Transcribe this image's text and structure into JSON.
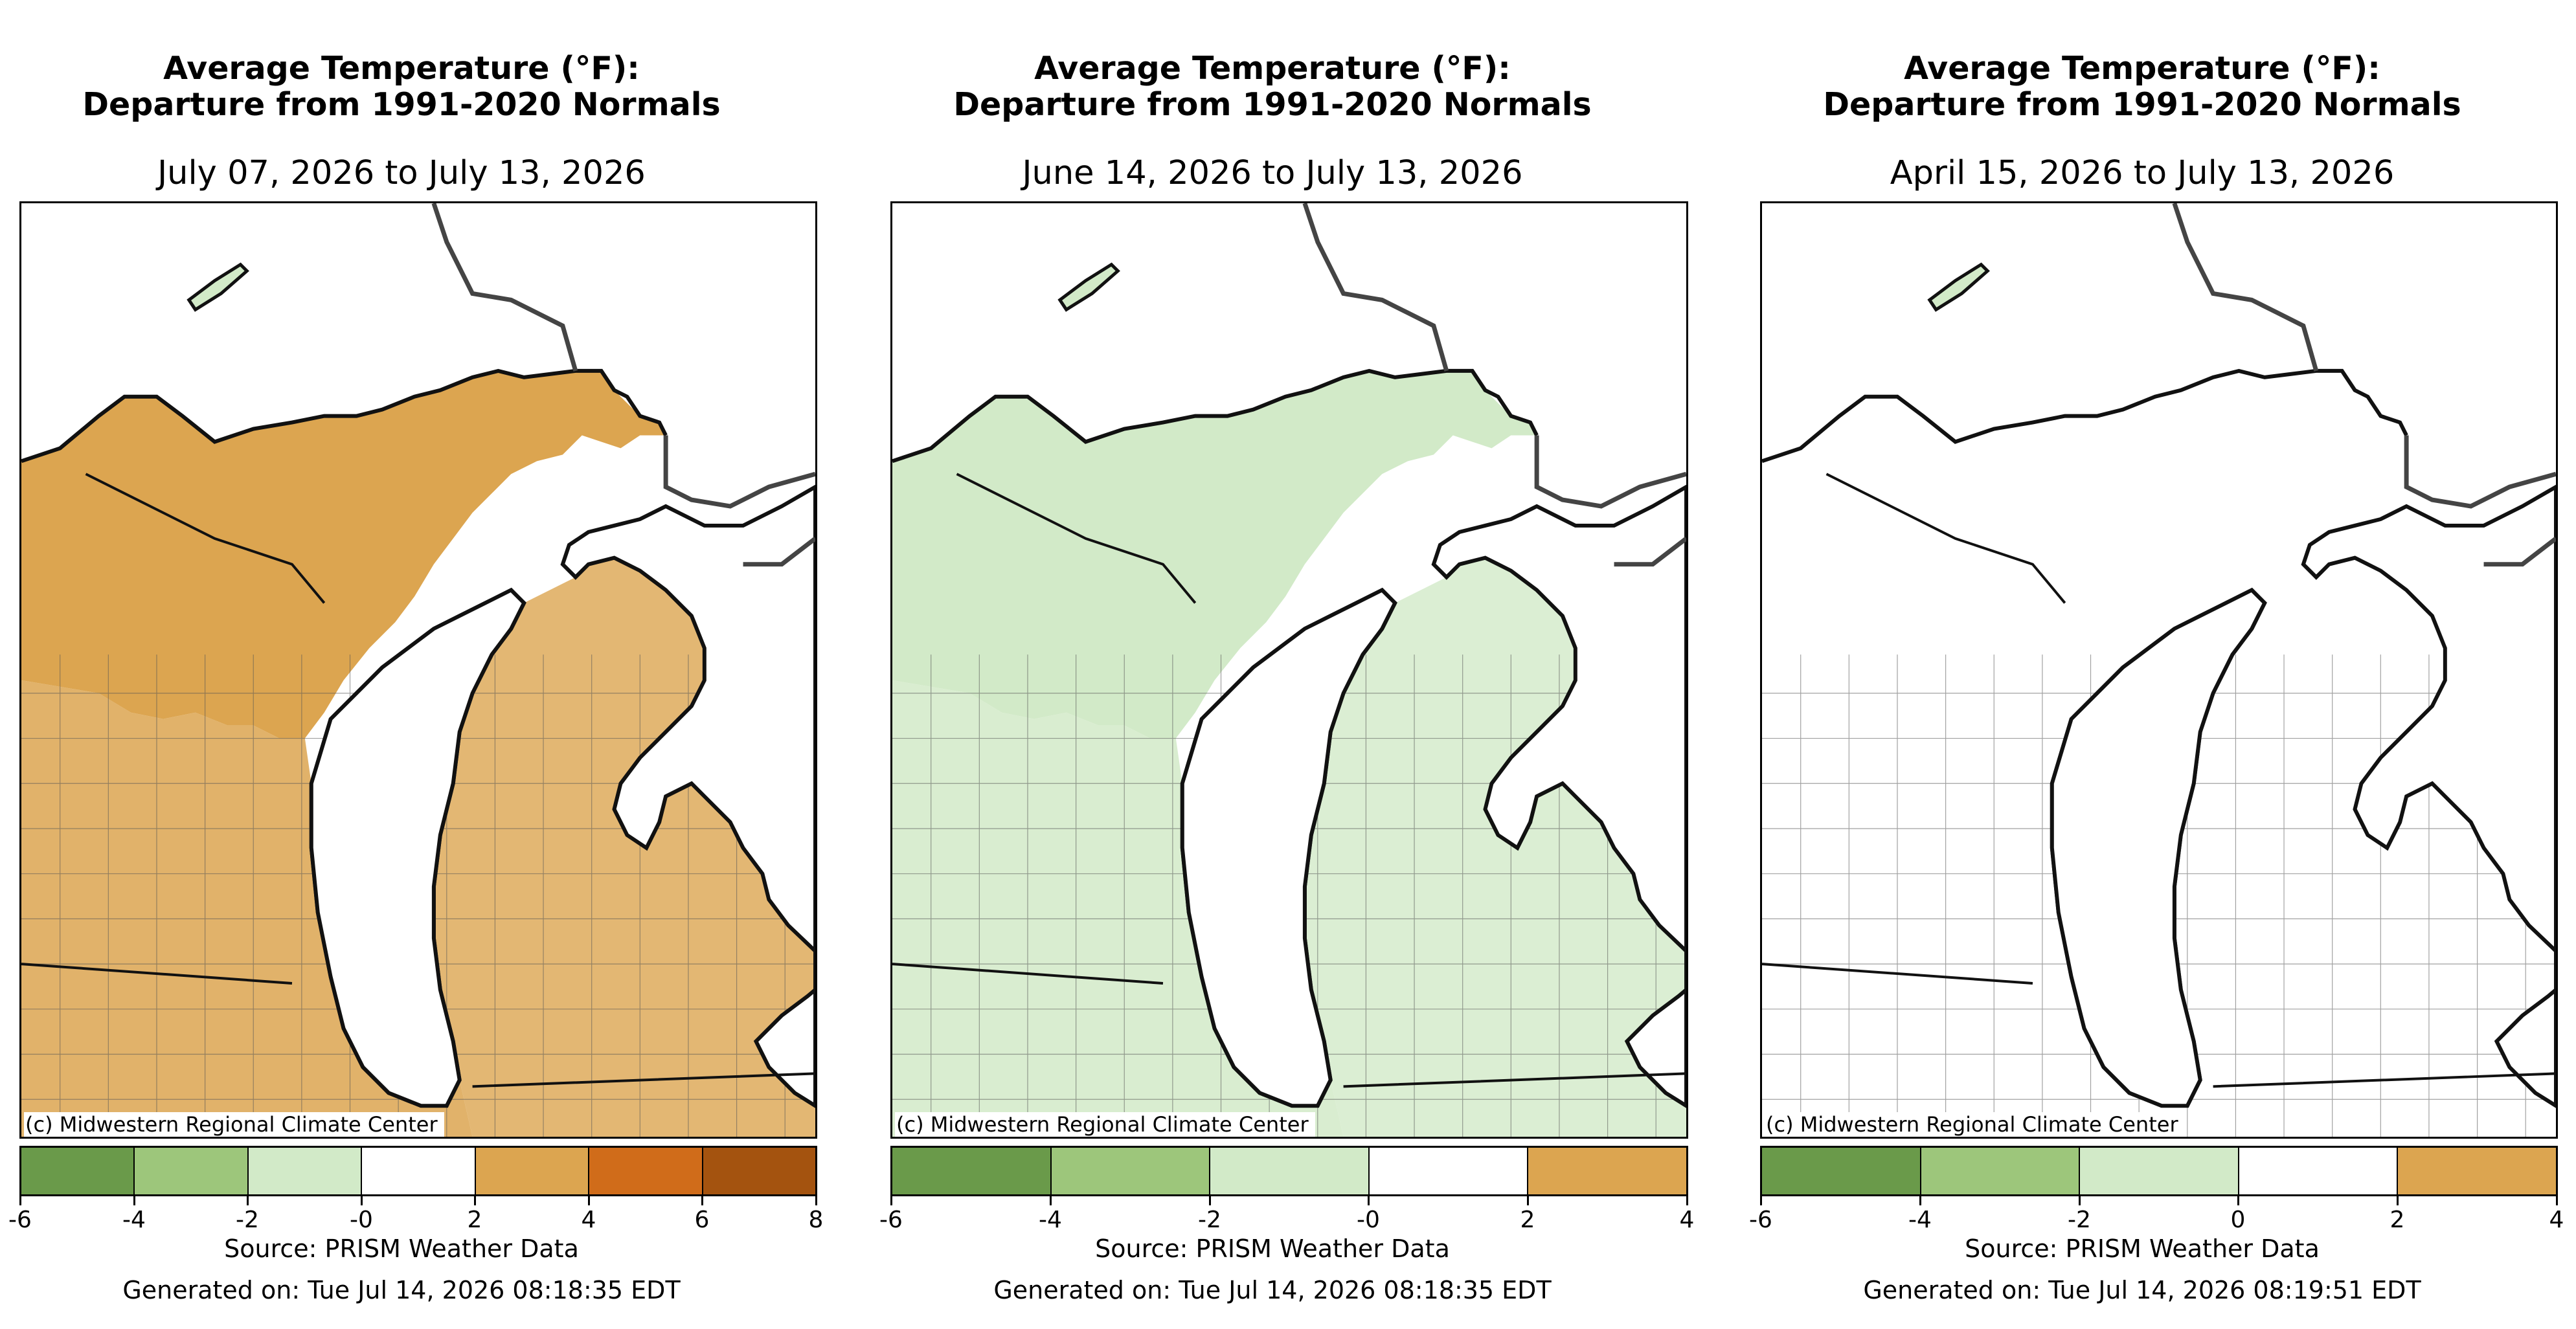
{
  "panels": [
    {
      "title_line1": "Average Temperature (°F):",
      "title_line2": "Departure from 1991-2020 Normals",
      "date_range": "July 07, 2026 to July 13, 2026",
      "credit": "(c) Midwestern Regional Climate Center",
      "colorbar": {
        "colors": [
          "#6a9a4a",
          "#9dc67b",
          "#d2eac8",
          "#ffffff",
          "#dca550",
          "#d06c1a",
          "#a4530f"
        ],
        "ticks": [
          "-6",
          "-4",
          "-2",
          "-0",
          "2",
          "4",
          "6",
          "8"
        ]
      },
      "source": "Source: PRISM Weather Data",
      "generated": "Generated on: Tue Jul 14, 2026 08:18:35 EDT",
      "dominant_fill": "#dca550"
    },
    {
      "title_line1": "Average Temperature (°F):",
      "title_line2": "Departure from 1991-2020 Normals",
      "date_range": "June 14, 2026 to July 13, 2026",
      "credit": "(c) Midwestern Regional Climate Center",
      "colorbar": {
        "colors": [
          "#6a9a4a",
          "#9dc67b",
          "#d2eac8",
          "#ffffff",
          "#dca550"
        ],
        "ticks": [
          "-6",
          "-4",
          "-2",
          "-0",
          "2",
          "4"
        ]
      },
      "source": "Source: PRISM Weather Data",
      "generated": "Generated on: Tue Jul 14, 2026 08:18:35 EDT",
      "dominant_fill": "#d2eac8"
    },
    {
      "title_line1": "Average Temperature (°F):",
      "title_line2": "Departure from 1991-2020 Normals",
      "date_range": "April 15, 2026 to July 13, 2026",
      "credit": "(c) Midwestern Regional Climate Center",
      "colorbar": {
        "colors": [
          "#6a9a4a",
          "#9dc67b",
          "#d2eac8",
          "#ffffff",
          "#dca550"
        ],
        "ticks": [
          "-6",
          "-4",
          "-2",
          "0",
          "2",
          "4"
        ]
      },
      "source": "Source: PRISM Weather Data",
      "generated": "Generated on: Tue Jul 14, 2026 08:19:51 EDT",
      "dominant_fill": "#ffffff"
    }
  ]
}
